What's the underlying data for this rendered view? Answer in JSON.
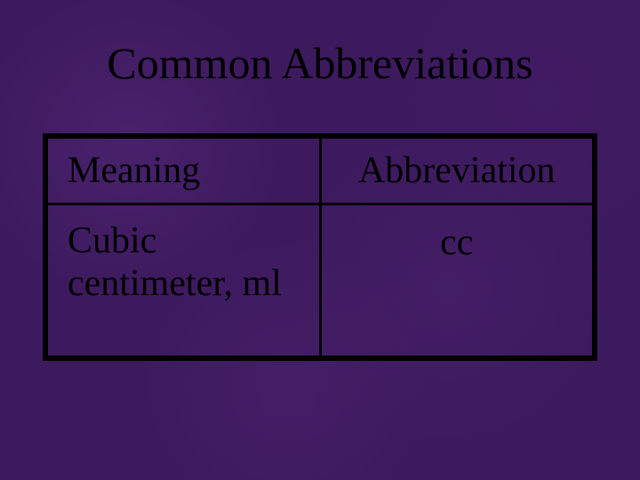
{
  "slide": {
    "title": "Common Abbreviations",
    "background_color": "#3d1a5e",
    "text_color": "#000000",
    "border_color": "#000000",
    "title_fontsize": 50,
    "cell_fontsize": 42,
    "font_family": "Garamond"
  },
  "table": {
    "type": "table",
    "columns": [
      "Meaning",
      "Abbreviation"
    ],
    "column_widths": [
      "50%",
      "50%"
    ],
    "column_align": [
      "left",
      "center"
    ],
    "rows": [
      [
        "Cubic centimeter, ml",
        "cc"
      ]
    ],
    "border_width": 3,
    "border_color": "#000000"
  }
}
